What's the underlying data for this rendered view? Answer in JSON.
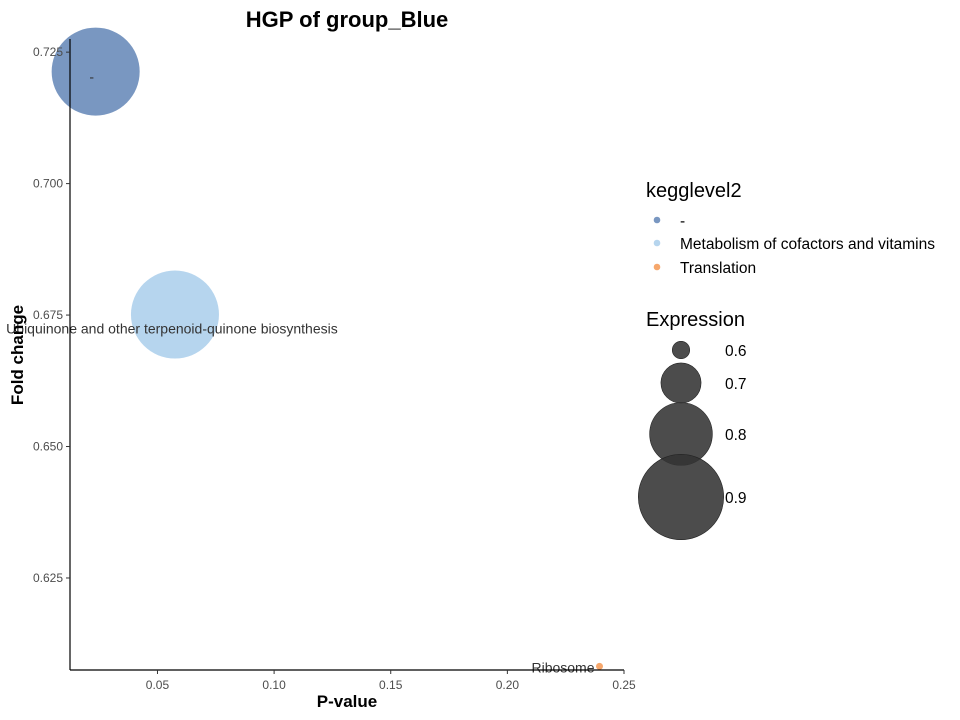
{
  "chart_data": {
    "type": "scatter",
    "title": "HGP of group_Blue",
    "xlabel": "P-value",
    "ylabel": "Fold change",
    "xlim": [
      0.0125,
      0.25
    ],
    "ylim": [
      0.6075,
      0.7275
    ],
    "x_ticks": [
      0.05,
      0.1,
      0.15,
      0.2,
      0.25
    ],
    "x_tick_labels": [
      "0.05",
      "0.10",
      "0.15",
      "0.20",
      "0.25"
    ],
    "y_ticks": [
      0.625,
      0.65,
      0.675,
      0.7,
      0.725
    ],
    "y_tick_labels": [
      "0.625",
      "0.650",
      "0.675",
      "0.700",
      "0.725"
    ],
    "grid": false,
    "points": [
      {
        "label": "-",
        "kegglevel2": "-",
        "x": 0.0235,
        "y": 0.7213,
        "expression": 0.9
      },
      {
        "label": "Ubiquinone and other terpenoid-quinone biosynthesis",
        "kegglevel2": "Metabolism of cofactors and vitamins",
        "x": 0.0575,
        "y": 0.6751,
        "expression": 0.9
      },
      {
        "label": "Ribosome",
        "kegglevel2": "Translation",
        "x": 0.2395,
        "y": 0.6082,
        "expression": 0.5
      }
    ],
    "legend_color": {
      "title": "kegglevel2",
      "entries": [
        {
          "name": "-",
          "color": "#6a8cba"
        },
        {
          "name": "Metabolism of cofactors and vitamins",
          "color": "#aed0ec"
        },
        {
          "name": "Translation",
          "color": "#f59d5c"
        }
      ]
    },
    "legend_size": {
      "title": "Expression",
      "entries": [
        {
          "label": "0.6",
          "value": 0.6
        },
        {
          "label": "0.7",
          "value": 0.7
        },
        {
          "label": "0.8",
          "value": 0.8
        },
        {
          "label": "0.9",
          "value": 0.9
        }
      ]
    },
    "legend_position": "right"
  }
}
